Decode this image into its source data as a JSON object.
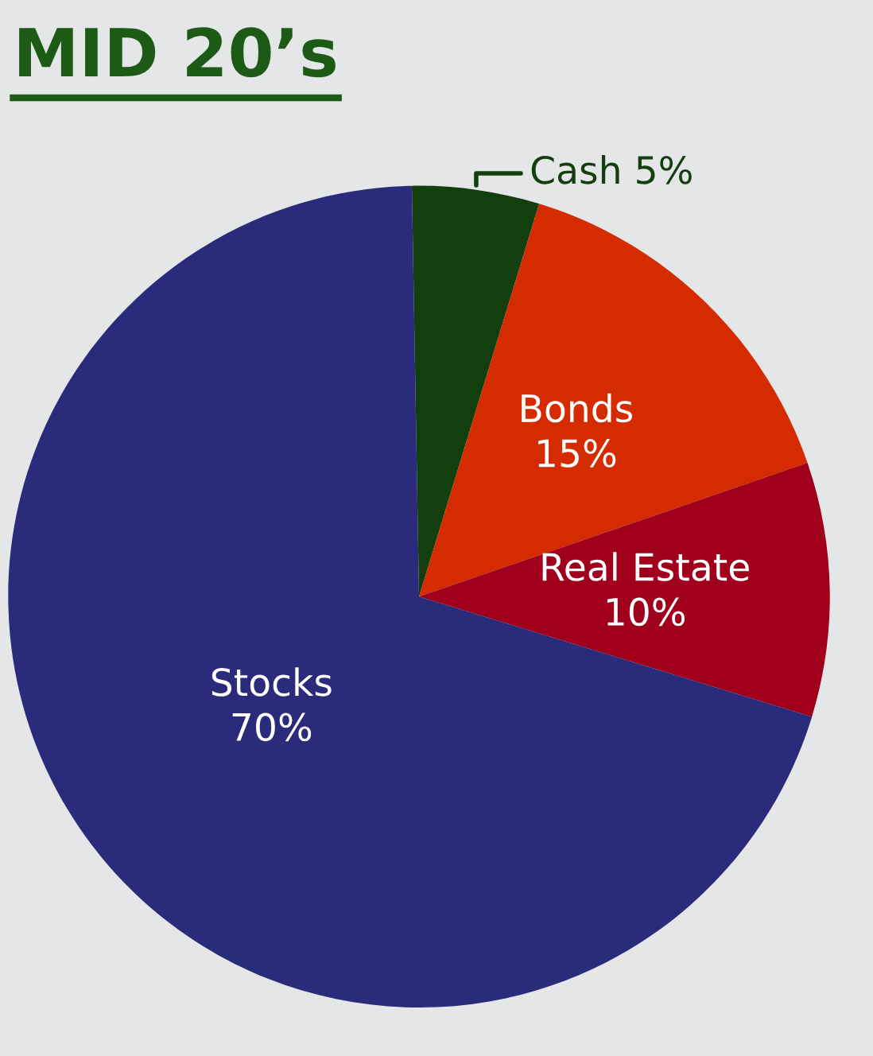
{
  "chart_data": {
    "type": "pie",
    "title": "MID 20’s",
    "categories": [
      "Cash",
      "Bonds",
      "Real Estate",
      "Stocks"
    ],
    "values": [
      5,
      15,
      10,
      70
    ],
    "value_labels": [
      "5%",
      "15%",
      "10%",
      "70%"
    ],
    "colors": [
      "#133f0f",
      "#d42c00",
      "#a1001c",
      "#2b2b7b"
    ]
  }
}
